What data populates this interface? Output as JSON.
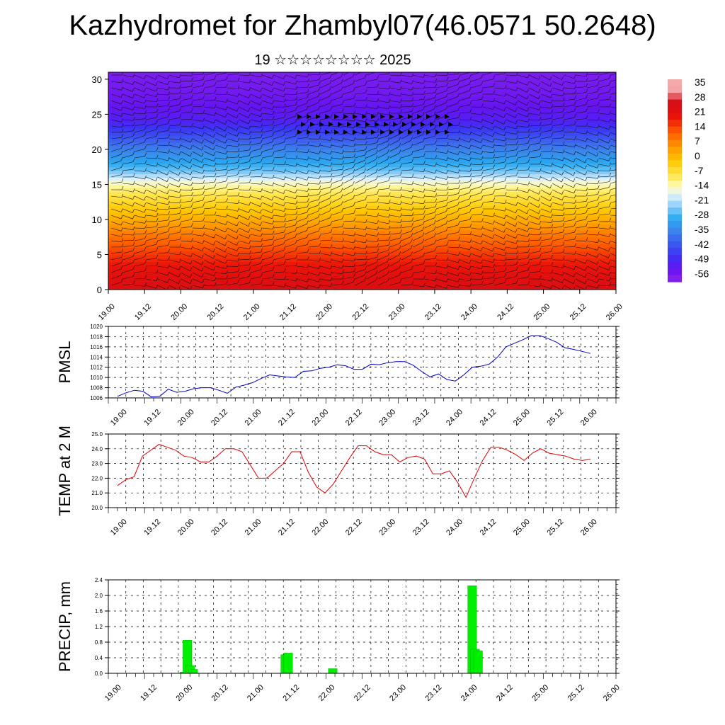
{
  "header": {
    "title": "Kazhydromet for Zhambyl07(46.0571 50.2648)",
    "subtitle": "19 ☆☆☆☆☆☆☆☆ 2025"
  },
  "time_labels": [
    "19.00",
    "19.12",
    "20.00",
    "20.12",
    "21.00",
    "21.12",
    "22.00",
    "22.12",
    "23.00",
    "23.12",
    "24.00",
    "24.12",
    "25.00",
    "25.12",
    "26.00"
  ],
  "colors": {
    "pmsl_line": "#0000cc",
    "temp_line": "#dd0000",
    "precip_bar": "#00ee00",
    "grid": "#000000"
  },
  "chart_data": [
    {
      "type": "heatmap",
      "name": "cross-section",
      "title": "",
      "ylabel": "",
      "ylim": [
        0,
        31
      ],
      "yticks": [
        0,
        5,
        10,
        15,
        20,
        25,
        30
      ],
      "x_labels_ref": "time_labels",
      "overlay": "wind barbs",
      "colorbar": {
        "labels": [
          "35",
          "28",
          "21",
          "14",
          "7",
          "0",
          "-7",
          "-14",
          "-21",
          "-28",
          "-35",
          "-42",
          "-49",
          "-56"
        ],
        "colors": [
          "#f7b4b4",
          "#ee4444",
          "#dd1111",
          "#ff5500",
          "#ff9900",
          "#ffcc00",
          "#ffee55",
          "#fffacc",
          "#aaddff",
          "#33aaee",
          "#3377ee",
          "#4444ee",
          "#5522ee",
          "#7722ee",
          "#9944ee"
        ]
      },
      "temperature_levels": {
        "y": [
          0,
          2,
          4,
          6,
          8,
          10,
          12,
          14,
          15,
          16,
          17,
          18,
          20,
          22,
          24,
          26,
          28,
          31
        ],
        "t": [
          26,
          24,
          20,
          15,
          10,
          4,
          -2,
          -8,
          -12,
          -18,
          -24,
          -28,
          -34,
          -42,
          -49,
          -52,
          -54,
          -56
        ]
      }
    },
    {
      "type": "line",
      "name": "pmsl",
      "ylabel": "PMSL",
      "ylim": [
        1006,
        1020
      ],
      "yticks": [
        "1006",
        "1008",
        "1010",
        "1012",
        "1014",
        "1016",
        "1018",
        "1020"
      ],
      "x_labels_ref": "time_labels",
      "series": [
        {
          "values": [
            1006.3,
            1007.0,
            1007.5,
            1007.3,
            1006.2,
            1006.3,
            1007.7,
            1007.1,
            1007.3,
            1007.8,
            1008.0,
            1008.0,
            1007.5,
            1006.9,
            1008.1,
            1008.5,
            1009.0,
            1009.8,
            1010.5,
            1010.3,
            1010.1,
            1010.0,
            1011.2,
            1011.3,
            1011.8,
            1012.0,
            1012.5,
            1012.3,
            1011.6,
            1011.6,
            1012.6,
            1012.5,
            1012.9,
            1013.1,
            1013.1,
            1012.4,
            1011.2,
            1010.1,
            1010.7,
            1009.6,
            1009.3,
            1010.5,
            1012.0,
            1012.2,
            1012.6,
            1014.0,
            1016.0,
            1016.7,
            1017.4,
            1018.2,
            1018.2,
            1017.6,
            1016.9,
            1015.8,
            1015.5,
            1015.1,
            1014.7
          ]
        }
      ]
    },
    {
      "type": "line",
      "name": "temp2m",
      "ylabel": "TEMP at 2 M",
      "ylim": [
        20,
        25
      ],
      "yticks": [
        "20.0",
        "21.0",
        "22.0",
        "23.0",
        "24.0",
        "25.0"
      ],
      "x_labels_ref": "time_labels",
      "series": [
        {
          "values": [
            21.5,
            21.9,
            22.1,
            23.5,
            23.9,
            24.3,
            24.1,
            23.9,
            23.5,
            23.4,
            23.1,
            23.1,
            23.5,
            24.0,
            24.0,
            23.8,
            22.9,
            22.0,
            22.0,
            22.5,
            23.0,
            23.8,
            23.8,
            22.4,
            21.4,
            21.0,
            21.6,
            22.5,
            23.4,
            24.2,
            24.2,
            23.8,
            23.6,
            23.6,
            23.1,
            23.4,
            23.5,
            23.3,
            22.3,
            22.3,
            22.5,
            21.7,
            20.7,
            22.0,
            23.2,
            24.1,
            24.1,
            23.9,
            23.6,
            23.2,
            23.7,
            24.0,
            23.7,
            23.6,
            23.5,
            23.3,
            23.2,
            23.3
          ]
        }
      ]
    },
    {
      "type": "bar",
      "name": "precip",
      "ylabel": "PRECIP, mm",
      "ylim": [
        0,
        2.4
      ],
      "yticks": [
        "0.0",
        "0.4",
        "0.8",
        "1.2",
        "1.6",
        "2.0",
        "2.4"
      ],
      "x_labels_ref": "time_labels",
      "bar_step_hours": 3,
      "series": [
        {
          "values": [
            0,
            0,
            0,
            0,
            0,
            0,
            0,
            0,
            0,
            0,
            0,
            0,
            0,
            0,
            0,
            0,
            0,
            0,
            0,
            0,
            0,
            0,
            0.03,
            0.85,
            0.2,
            0.1,
            0,
            0,
            0,
            0,
            0,
            0,
            0,
            0,
            0,
            0,
            0,
            0,
            0,
            0,
            0,
            0,
            0,
            0,
            0,
            0,
            0,
            0,
            0,
            0,
            0,
            0,
            0,
            0,
            0,
            0,
            0.48,
            0.52,
            0,
            0,
            0,
            0,
            0,
            0,
            0,
            0,
            0,
            0,
            0,
            0,
            0,
            0,
            0.12,
            0,
            0,
            0,
            0,
            0,
            0,
            0,
            0,
            0,
            0,
            0,
            0,
            0,
            0,
            0,
            0,
            0,
            0,
            0,
            0,
            0,
            0,
            0,
            0,
            0,
            0,
            0,
            0,
            0,
            0,
            0,
            0,
            0,
            0,
            0,
            0,
            0,
            0,
            0,
            0,
            0,
            0,
            0,
            0,
            0,
            0,
            2.25,
            0.62,
            0.58,
            0,
            0,
            0,
            0,
            0,
            0,
            0,
            0,
            0,
            0,
            0,
            0,
            0,
            0,
            0,
            0,
            0,
            0,
            0,
            0,
            0,
            0,
            0,
            0,
            0,
            0,
            0,
            0,
            0,
            0,
            0,
            0,
            0,
            0,
            0,
            0,
            0,
            0,
            0,
            0,
            0,
            0,
            0,
            0,
            0,
            0,
            0,
            0,
            0,
            0,
            0,
            0,
            0,
            0,
            0,
            0,
            0,
            0,
            0,
            0,
            0,
            0,
            0
          ]
        }
      ]
    }
  ]
}
